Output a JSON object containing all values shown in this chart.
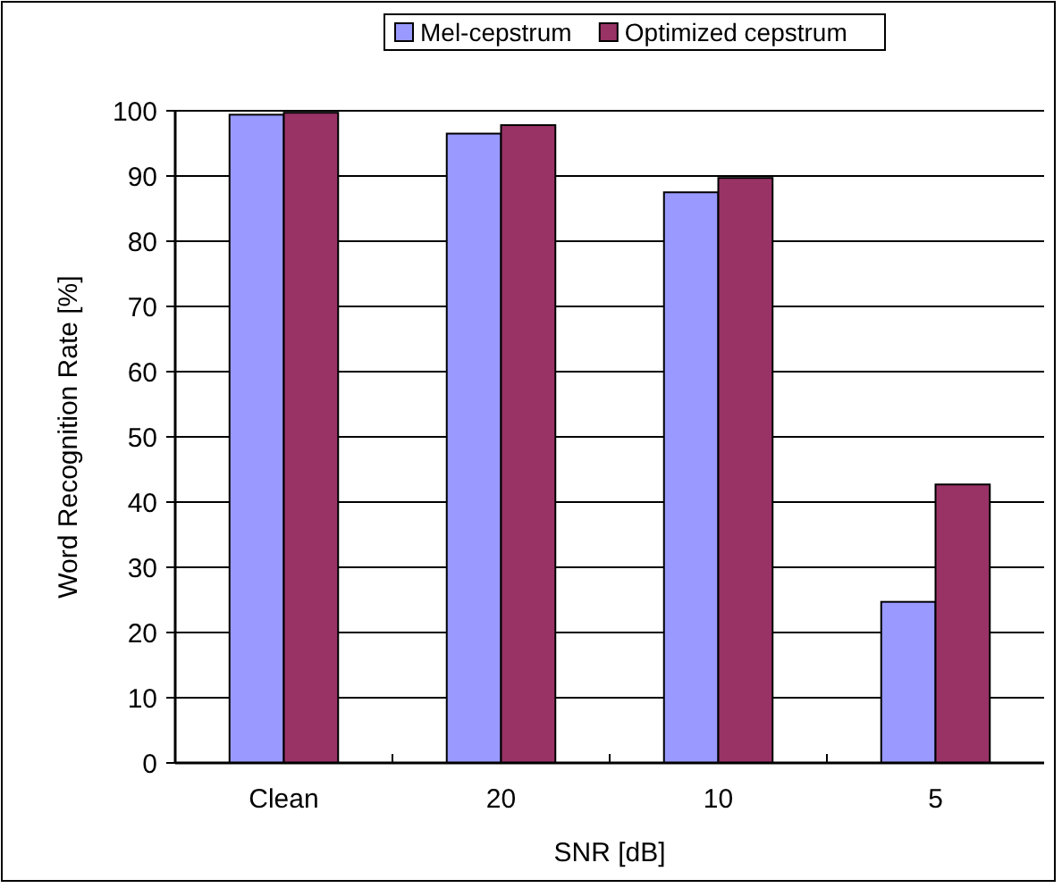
{
  "chart_data": {
    "type": "bar",
    "xlabel": "SNR [dB]",
    "ylabel": "Word Recognition Rate [%]",
    "categories": [
      "Clean",
      "20",
      "10",
      "5"
    ],
    "series": [
      {
        "name": "Mel-cepstrum",
        "color": "#9999ff",
        "values": [
          99.4,
          96.5,
          87.5,
          24.7
        ]
      },
      {
        "name": "Optimized cepstrum",
        "color": "#993366",
        "values": [
          99.7,
          97.8,
          89.7,
          42.7
        ]
      }
    ],
    "ylim": [
      0,
      100
    ],
    "yticks": [
      0,
      10,
      20,
      30,
      40,
      50,
      60,
      70,
      80,
      90,
      100
    ],
    "grid": "y",
    "legend": "top"
  }
}
